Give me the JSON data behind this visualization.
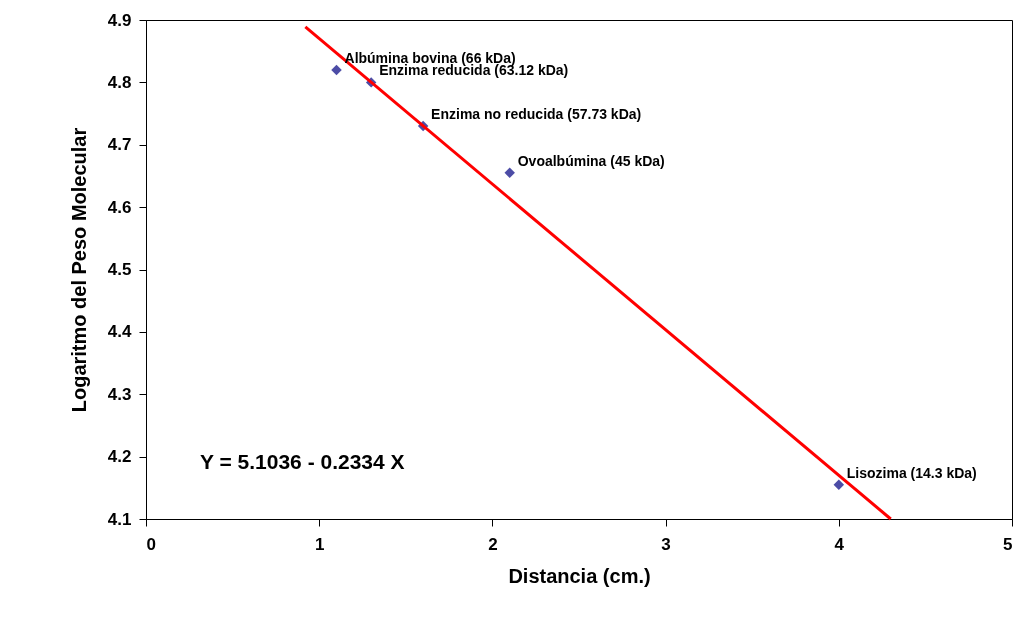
{
  "chart_data": {
    "type": "scatter",
    "xlabel": "Distancia (cm.)",
    "ylabel": "Logaritmo del Peso Molecular",
    "xlim": [
      0,
      5
    ],
    "xticks": [
      0,
      1,
      2,
      3,
      4,
      5
    ],
    "ylim": [
      4.1,
      4.9
    ],
    "yticks": [
      4.1,
      4.2,
      4.3,
      4.4,
      4.5,
      4.6,
      4.7,
      4.8,
      4.9
    ],
    "grid": false,
    "series": [
      {
        "marker": "diamond",
        "color": "#000080",
        "x": [
          1.1,
          1.3,
          1.6,
          2.1,
          4.0
        ],
        "values": [
          4.82,
          4.8,
          4.73,
          4.655,
          4.155
        ]
      },
      {
        "type": "line",
        "marker": "none",
        "color": "#ff0000",
        "x": [
          0.92,
          4.3
        ],
        "values": [
          4.889,
          4.1
        ]
      }
    ],
    "annotations": [
      {
        "text": "Albúmina bovina (66 kDa)",
        "x": 1.1,
        "y": 4.82
      },
      {
        "text": "Enzima reducida (63.12 kDa)",
        "x": 1.3,
        "y": 4.8
      },
      {
        "text": "Enzima no reducida (57.73 kDa)",
        "x": 1.6,
        "y": 4.73
      },
      {
        "text": "Ovoalbúmina (45 kDa)",
        "x": 2.1,
        "y": 4.655
      },
      {
        "text": "Lisozima (14.3 kDa)",
        "x": 4.0,
        "y": 4.155
      },
      "Y = 5.1036 - 0.2334 X"
    ]
  }
}
